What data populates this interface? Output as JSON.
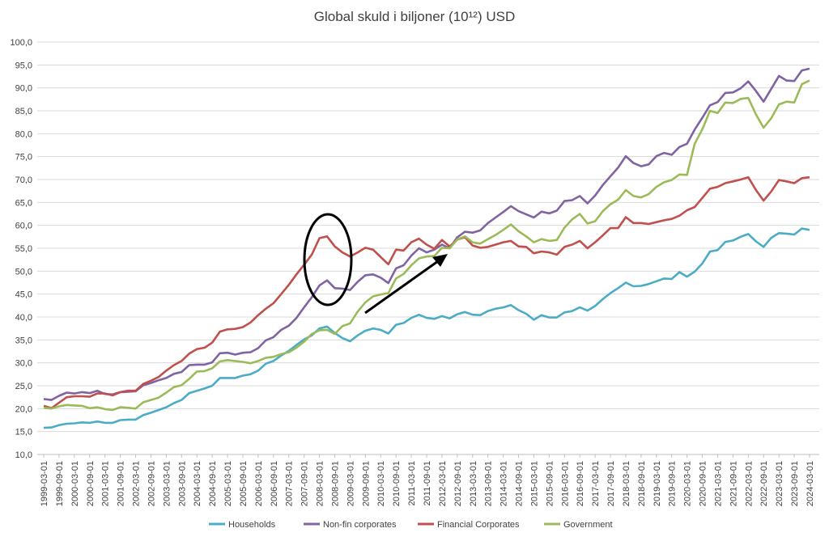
{
  "chart_data": {
    "type": "line",
    "title": "Global skuld i biljoner (10¹²) USD",
    "xlabel": "",
    "ylabel": "",
    "ylim": [
      10,
      100
    ],
    "y_ticks": [
      "10,0",
      "15,0",
      "20,0",
      "25,0",
      "30,0",
      "35,0",
      "40,0",
      "45,0",
      "50,0",
      "55,0",
      "60,0",
      "65,0",
      "70,0",
      "75,0",
      "80,0",
      "85,0",
      "90,0",
      "95,0",
      "100,0"
    ],
    "x_tick_labels": [
      "1999-03-01",
      "1999-09-01",
      "2000-03-01",
      "2000-09-01",
      "2001-03-01",
      "2001-09-01",
      "2002-03-01",
      "2002-09-01",
      "2003-03-01",
      "2003-09-01",
      "2004-03-01",
      "2004-09-01",
      "2005-03-01",
      "2005-09-01",
      "2006-03-01",
      "2006-09-01",
      "2007-03-01",
      "2007-09-01",
      "2008-03-01",
      "2008-09-01",
      "2009-03-01",
      "2009-09-01",
      "2010-03-01",
      "2010-09-01",
      "2011-03-01",
      "2011-09-01",
      "2012-03-01",
      "2012-09-01",
      "2013-03-01",
      "2013-09-01",
      "2014-03-01",
      "2014-09-01",
      "2015-03-01",
      "2015-09-01",
      "2016-03-01",
      "2016-09-01",
      "2017-03-01",
      "2017-09-01",
      "2018-03-01",
      "2018-09-01",
      "2019-03-01",
      "2019-09-01",
      "2020-03-01",
      "2020-09-01",
      "2021-03-01",
      "2021-09-01",
      "2022-03-01",
      "2022-09-01",
      "2023-03-01",
      "2023-09-01",
      "2024-03-01"
    ],
    "x_start": "1999-03-01",
    "x_step_months": 3,
    "grid": true,
    "legend_position": "bottom",
    "series": [
      {
        "name": "Households",
        "color": "#4bacc6",
        "values": [
          15.8,
          15.9,
          16.4,
          16.7,
          16.8,
          17.0,
          16.9,
          17.2,
          16.9,
          16.9,
          17.5,
          17.6,
          17.6,
          18.6,
          19.1,
          19.7,
          20.3,
          21.2,
          21.9,
          23.4,
          23.9,
          24.4,
          25.0,
          26.7,
          26.7,
          26.7,
          27.2,
          27.5,
          28.3,
          29.8,
          30.4,
          31.6,
          32.6,
          33.9,
          35.1,
          36.0,
          37.5,
          37.9,
          36.5,
          35.4,
          34.7,
          36.0,
          37.0,
          37.5,
          37.2,
          36.4,
          38.3,
          38.7,
          39.8,
          40.5,
          39.8,
          39.6,
          40.2,
          39.7,
          40.6,
          41.1,
          40.5,
          40.4,
          41.3,
          41.8,
          42.1,
          42.6,
          41.5,
          40.7,
          39.4,
          40.4,
          39.9,
          39.9,
          41.0,
          41.3,
          42.1,
          41.4,
          42.4,
          43.9,
          45.2,
          46.3,
          47.5,
          46.7,
          46.8,
          47.2,
          47.8,
          48.4,
          48.3,
          49.8,
          48.8,
          49.9,
          51.7,
          54.3,
          54.6,
          56.4,
          56.7,
          57.5,
          58.1,
          56.5,
          55.3,
          57.3,
          58.3,
          58.2,
          58.0,
          59.3,
          59.0
        ]
      },
      {
        "name": "Non-fin corporates",
        "color": "#8064a2",
        "values": [
          22.1,
          21.9,
          22.8,
          23.5,
          23.3,
          23.6,
          23.4,
          23.9,
          23.2,
          23.1,
          23.6,
          23.7,
          23.8,
          25.1,
          25.6,
          26.2,
          26.7,
          27.6,
          28.0,
          29.5,
          29.6,
          29.6,
          30.1,
          32.1,
          32.2,
          31.8,
          32.2,
          32.3,
          33.2,
          34.9,
          35.6,
          37.2,
          38.1,
          39.8,
          42.1,
          44.3,
          46.9,
          48.0,
          46.3,
          46.2,
          45.9,
          47.7,
          49.1,
          49.3,
          48.6,
          47.4,
          50.6,
          51.3,
          53.4,
          55.0,
          54.1,
          54.7,
          55.8,
          55.0,
          57.4,
          58.6,
          58.4,
          58.9,
          60.5,
          61.7,
          62.9,
          64.2,
          63.1,
          62.4,
          61.7,
          63.0,
          62.6,
          63.2,
          65.3,
          65.5,
          66.4,
          64.8,
          66.5,
          68.8,
          70.7,
          72.6,
          75.1,
          73.6,
          72.9,
          73.3,
          75.1,
          75.8,
          75.4,
          77.1,
          77.8,
          80.9,
          83.5,
          86.2,
          86.9,
          88.9,
          89.0,
          89.9,
          91.4,
          89.3,
          87.0,
          89.8,
          92.6,
          91.6,
          91.5,
          93.8,
          94.2
        ]
      },
      {
        "name": "Financial Corporates",
        "color": "#c0504d",
        "values": [
          20.6,
          20.1,
          21.3,
          22.5,
          22.7,
          22.7,
          22.6,
          23.3,
          23.3,
          22.9,
          23.6,
          23.9,
          23.9,
          25.4,
          26.1,
          26.9,
          28.3,
          29.5,
          30.4,
          32.0,
          33.0,
          33.3,
          34.4,
          36.8,
          37.3,
          37.4,
          37.8,
          38.8,
          40.4,
          41.8,
          43.0,
          45.0,
          47.0,
          49.3,
          51.4,
          53.6,
          57.2,
          57.6,
          55.4,
          54.1,
          53.2,
          54.1,
          55.1,
          54.7,
          53.1,
          51.5,
          54.7,
          54.5,
          56.3,
          57.1,
          55.8,
          54.9,
          56.8,
          55.4,
          56.9,
          57.4,
          55.6,
          55.1,
          55.3,
          55.8,
          56.3,
          56.6,
          55.4,
          55.3,
          53.9,
          54.3,
          54.1,
          53.6,
          55.3,
          55.8,
          56.6,
          55.0,
          56.3,
          57.8,
          59.4,
          59.4,
          61.8,
          60.5,
          60.5,
          60.3,
          60.7,
          61.1,
          61.4,
          62.1,
          63.3,
          64.0,
          66.0,
          68.0,
          68.4,
          69.2,
          69.6,
          70.0,
          70.5,
          67.7,
          65.4,
          67.4,
          69.9,
          69.6,
          69.2,
          70.3,
          70.5
        ]
      },
      {
        "name": "Government",
        "color": "#9bbb59",
        "values": [
          20.2,
          20.0,
          20.5,
          20.8,
          20.7,
          20.6,
          20.1,
          20.3,
          19.9,
          19.7,
          20.3,
          20.2,
          20.0,
          21.4,
          21.9,
          22.4,
          23.5,
          24.7,
          25.1,
          26.5,
          28.1,
          28.2,
          28.8,
          30.3,
          30.6,
          30.4,
          30.2,
          29.9,
          30.4,
          31.1,
          31.3,
          31.9,
          32.3,
          33.3,
          34.6,
          36.3,
          37.1,
          37.2,
          36.3,
          38.0,
          38.6,
          41.2,
          43.2,
          44.5,
          44.9,
          45.2,
          48.4,
          49.4,
          51.3,
          52.8,
          53.2,
          53.3,
          55.1,
          55.0,
          56.9,
          57.6,
          56.3,
          56.0,
          57.0,
          57.9,
          59.0,
          60.2,
          58.7,
          57.6,
          56.3,
          57.0,
          56.6,
          56.8,
          59.5,
          61.3,
          62.5,
          60.4,
          60.9,
          63.1,
          64.6,
          65.6,
          67.7,
          66.4,
          66.1,
          66.8,
          68.4,
          69.4,
          69.9,
          71.1,
          71.0,
          77.8,
          81.0,
          85.0,
          84.5,
          86.8,
          86.7,
          87.6,
          87.8,
          84.2,
          81.3,
          83.4,
          86.4,
          87.0,
          86.8,
          90.8,
          91.6
        ]
      }
    ]
  }
}
